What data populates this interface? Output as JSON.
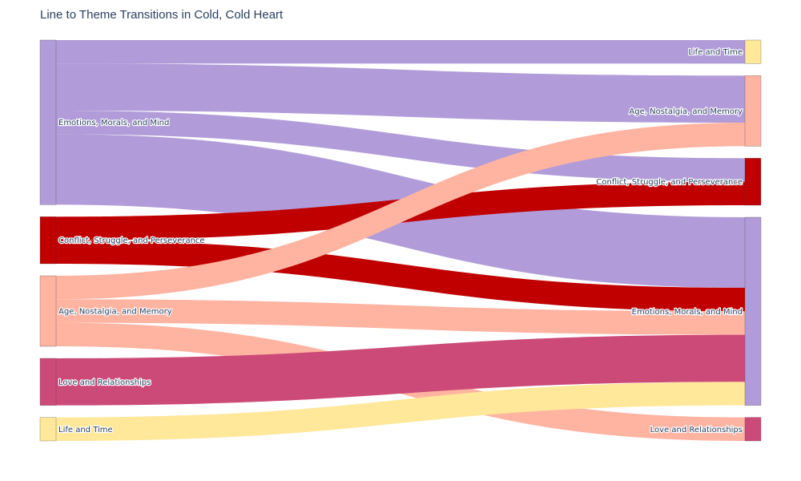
{
  "chart_data": {
    "type": "sankey",
    "title": "Line to Theme Transitions in Cold, Cold Heart",
    "colors": {
      "Emotions, Morals, and Mind": "#b19cd9",
      "Conflict, Struggle, and Perseverance": "#c00000",
      "Age, Nostalgia, and Memory": "#ffb3a1",
      "Love and Relationships": "#cc4a78",
      "Life and Time": "#ffe89a"
    },
    "source_nodes": [
      "Emotions, Morals, and Mind",
      "Conflict, Struggle, and Perseverance",
      "Age, Nostalgia, and Memory",
      "Love and Relationships",
      "Life and Time"
    ],
    "target_nodes": [
      "Life and Time",
      "Age, Nostalgia, and Memory",
      "Conflict, Struggle, and Perseverance",
      "Emotions, Morals, and Mind",
      "Love and Relationships"
    ],
    "links": [
      {
        "source": "Emotions, Morals, and Mind",
        "target": "Life and Time",
        "value": 1
      },
      {
        "source": "Emotions, Morals, and Mind",
        "target": "Age, Nostalgia, and Memory",
        "value": 2
      },
      {
        "source": "Emotions, Morals, and Mind",
        "target": "Conflict, Struggle, and Perseverance",
        "value": 1
      },
      {
        "source": "Emotions, Morals, and Mind",
        "target": "Emotions, Morals, and Mind",
        "value": 3
      },
      {
        "source": "Conflict, Struggle, and Perseverance",
        "target": "Conflict, Struggle, and Perseverance",
        "value": 1
      },
      {
        "source": "Conflict, Struggle, and Perseverance",
        "target": "Emotions, Morals, and Mind",
        "value": 1
      },
      {
        "source": "Age, Nostalgia, and Memory",
        "target": "Age, Nostalgia, and Memory",
        "value": 1
      },
      {
        "source": "Age, Nostalgia, and Memory",
        "target": "Emotions, Morals, and Mind",
        "value": 1
      },
      {
        "source": "Age, Nostalgia, and Memory",
        "target": "Love and Relationships",
        "value": 1
      },
      {
        "source": "Love and Relationships",
        "target": "Emotions, Morals, and Mind",
        "value": 2
      },
      {
        "source": "Life and Time",
        "target": "Emotions, Morals, and Mind",
        "value": 1
      }
    ]
  }
}
